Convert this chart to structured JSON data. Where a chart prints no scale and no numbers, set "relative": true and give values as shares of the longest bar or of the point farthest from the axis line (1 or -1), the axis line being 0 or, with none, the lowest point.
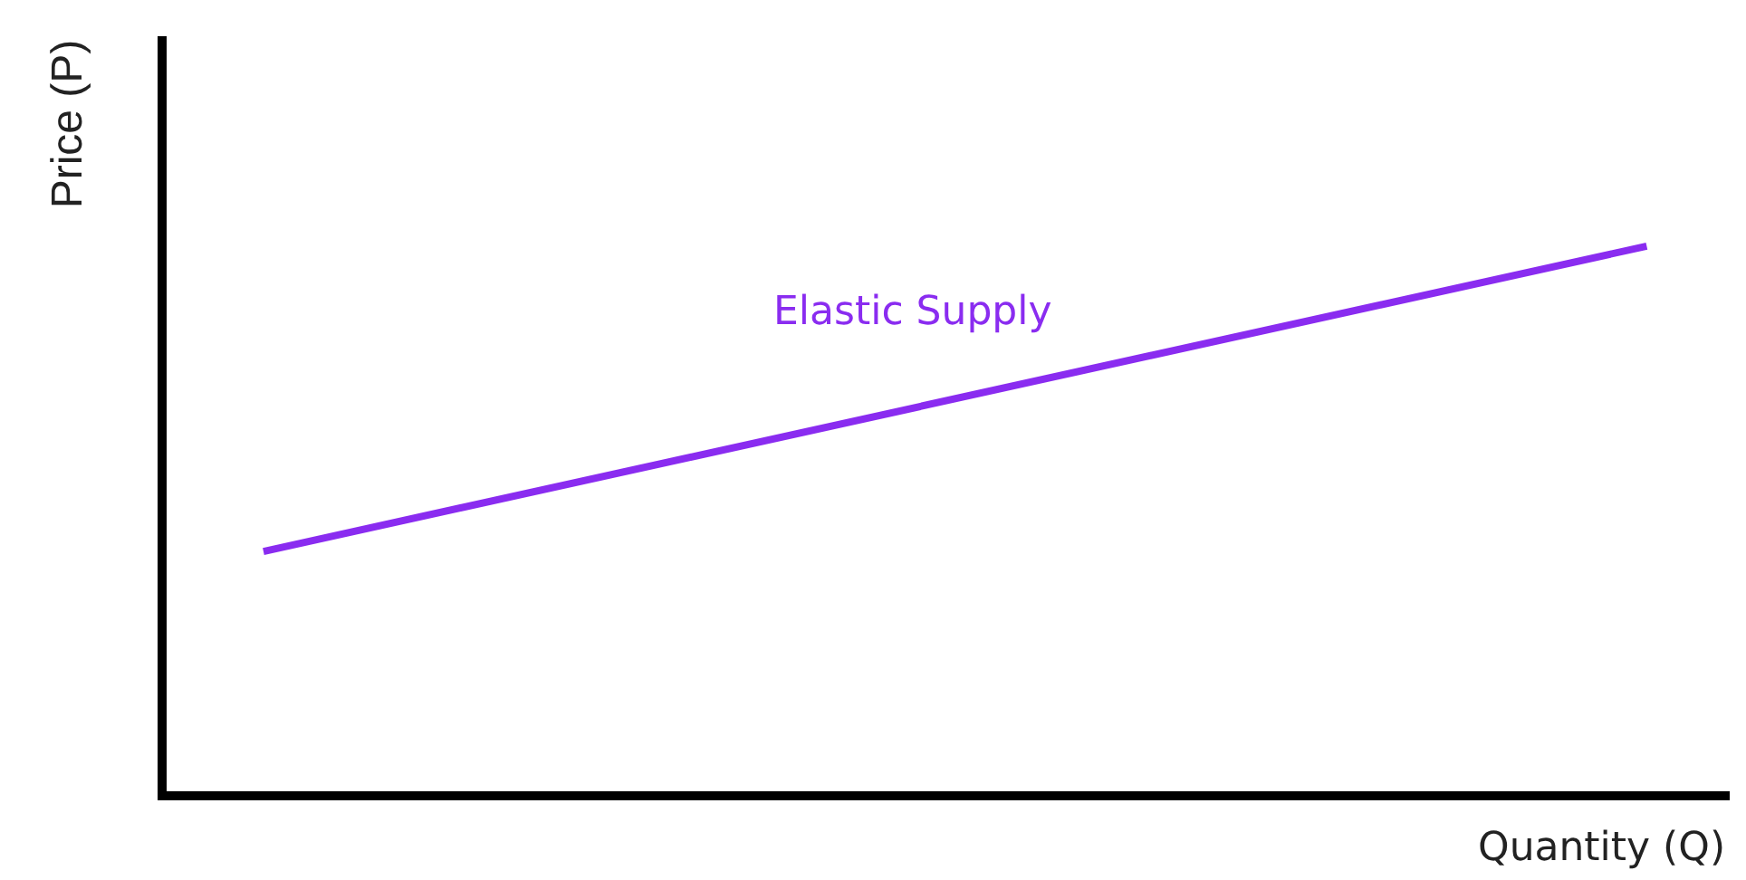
{
  "chart_data": {
    "type": "line",
    "relative": true,
    "xlabel": "Quantity (Q)",
    "ylabel": "Price (P)",
    "categories": [
      null,
      null
    ],
    "series": [
      {
        "name": "Elastic Supply",
        "color": "#8a2cf0",
        "values": [
          0.44,
          1
        ]
      }
    ],
    "legend": false,
    "marker": "none",
    "line_style": "solid"
  }
}
